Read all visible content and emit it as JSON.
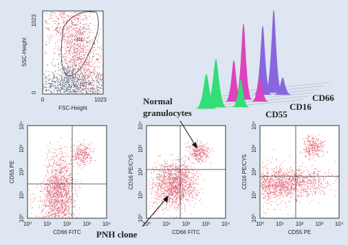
{
  "scatter_top": {
    "gate_label": "R1",
    "y_label": "SSC-Height",
    "x_label": "FSC-Height",
    "y_ticks": [
      "1023",
      "0"
    ],
    "x_ticks": [
      "0",
      "1023"
    ]
  },
  "histogram_3d": {
    "legend": [
      "CD66",
      "CD16",
      "CD55"
    ]
  },
  "annotations": {
    "normal": [
      "Normal",
      "granulocytes"
    ],
    "pnh": "PNH clone"
  },
  "plots": [
    {
      "y_label": "CD55 PE",
      "x_label": "CD66 FITC",
      "y_ticks": [
        "10⁰",
        "10¹",
        "10²",
        "10³",
        "10⁴"
      ],
      "x_ticks": [
        "10⁰",
        "10¹",
        "10²",
        "10³",
        "10⁴"
      ]
    },
    {
      "y_label": "CD16 PE/CY5",
      "x_label": "CD66 FITC",
      "y_ticks": [
        "10⁰",
        "10¹",
        "10²",
        "10³",
        "10⁴"
      ],
      "x_ticks": [
        "10⁰",
        "10¹",
        "10²",
        "10³",
        "10⁴"
      ]
    },
    {
      "y_label": "CD16 PE/CY5",
      "x_label": "CD55 PE",
      "y_ticks": [
        "10⁰",
        "10¹",
        "10²",
        "10³",
        "10⁴"
      ],
      "x_ticks": [
        "10⁰",
        "10¹",
        "10²",
        "10³",
        "10⁴"
      ]
    }
  ]
}
